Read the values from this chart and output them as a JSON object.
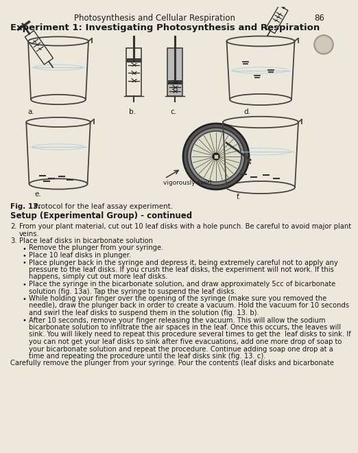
{
  "page_number": "86",
  "header_title": "Photosynthesis and Cellular Respiration",
  "experiment_title": "Experiment 1: Investigating Photosynthesis and Respiration",
  "fig_caption_bold": "Fig. 13.",
  "fig_caption_rest": " Protocol for the leaf assay experiment.",
  "section_title": "Setup (Experimental Group) - continued",
  "background_color": "#ede8dc",
  "text_color": "#1a1a1a",
  "labels": [
    "a.",
    "b.",
    "c.",
    "d.",
    "e.",
    "f."
  ],
  "swirl_label": "vigorously swirl",
  "bullets": [
    "Remove the plunger from your syringe.",
    "Place 10 leaf disks in plunger.",
    "Place plunger back in the syringe and depress it, being extremely careful not to apply any\npressure to the leaf disks. If you crush the leaf disks, the experiment will not work. If this\nhappens, simply cut out more leaf disks.",
    "Place the syringe in the bicarbonate solution, and draw approximately 5cc of bicarbonate\nsolution (fig. 13a). Tap the syringe to suspend the leaf disks.",
    "While holding your finger over the opening of the syringe (make sure you removed the\nneedle), draw the plunger back in order to create a vacuum. Hold the vacuum for 10 seconds\nand swirl the leaf disks to suspend them in the solution (fig. 13. b).",
    "After 10 seconds, remove your finger releasing the vacuum. This will allow the sodium\nbicarbonate solution to infiltrate the air spaces in the leaf. Once this occurs, the leaves will\nsink. You will likely need to repeat this procedure several times to get the  leaf disks to sink. If\nyou can not get your leaf disks to sink after five evacuations, add one more drop of soap to\nyour bicarbonate solution and repeat the procedure. Continue adding soap one drop at a\ntime and repeating the procedure until the leaf disks sink (fig. 13. c)."
  ],
  "item2": "From your plant material, cut out 10 leaf disks with a hole punch. Be careful to avoid major plant\nveins.",
  "item3": "Place leaf disks in bicarbonate solution",
  "last_line": "Carefully remove the plunger from your syringe. Pour the contents (leaf disks and bicarbonate"
}
